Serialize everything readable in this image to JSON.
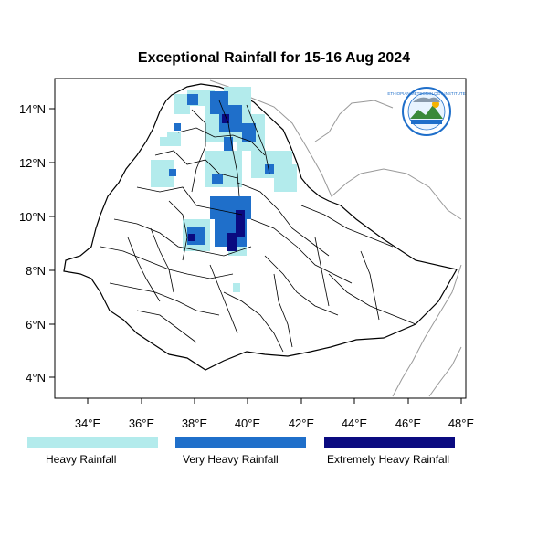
{
  "title": "Exceptional Rainfall for 15-16 Aug 2024",
  "map": {
    "lon_ticks": [
      "34°E",
      "36°E",
      "38°E",
      "40°E",
      "42°E",
      "44°E",
      "46°E",
      "48°E"
    ],
    "lat_ticks": [
      "4°N",
      "6°N",
      "8°N",
      "10°N",
      "12°N",
      "14°N"
    ],
    "lon_range": [
      32.8,
      48.2
    ],
    "lat_range": [
      3.2,
      15.2
    ]
  },
  "legend": [
    {
      "label": "Heavy Rainfall",
      "color": "#b3ebec"
    },
    {
      "label": "Very Heavy Rainfall",
      "color": "#1f6fca"
    },
    {
      "label": "Extremely Heavy Rainfall",
      "color": "#0a0a80"
    }
  ],
  "logo": {
    "text": "ETHIOPIAN METEOROLOGY INSTITUTE"
  }
}
